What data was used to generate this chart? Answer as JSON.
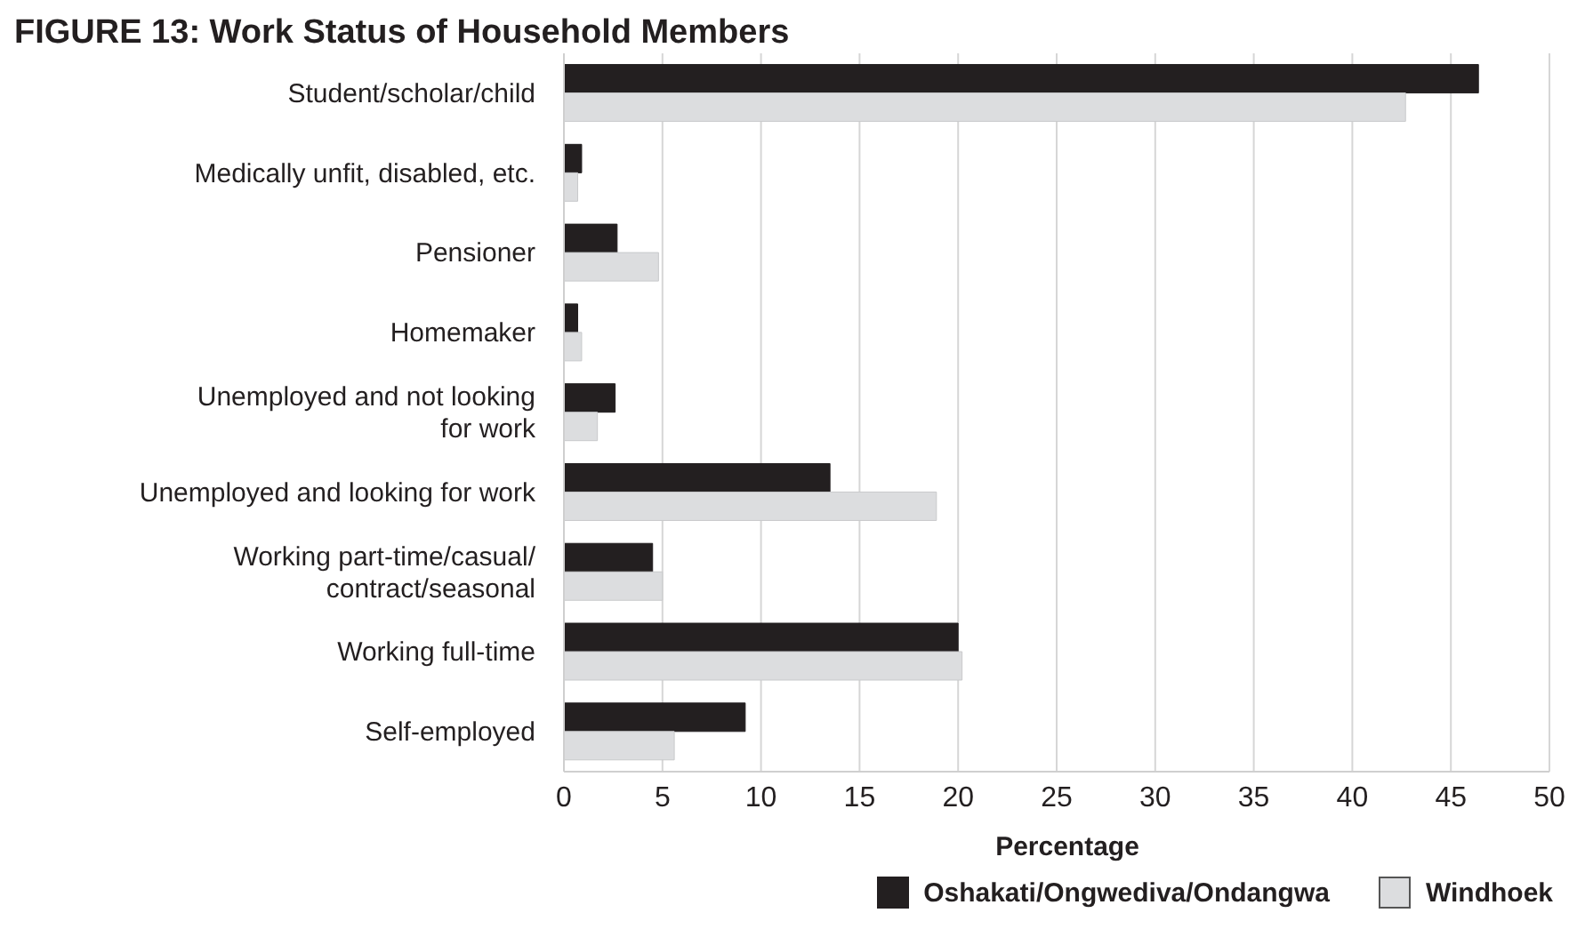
{
  "chart_data": {
    "type": "bar",
    "orientation": "horizontal",
    "title": "FIGURE 13: Work Status of Household Members",
    "xlabel": "Percentage",
    "categories": [
      "Student/scholar/child",
      "Medically unfit, disabled, etc.",
      "Pensioner",
      "Homemaker",
      "Unemployed and not looking for work",
      "Unemployed and looking for work",
      "Working part-time/casual/contract/seasonal",
      "Working full-time",
      "Self-employed"
    ],
    "series": [
      {
        "name": "Oshakati/Ongwediva/Ondangwa",
        "color": "#231f20",
        "values": [
          46.4,
          0.9,
          2.7,
          0.7,
          2.6,
          13.5,
          4.5,
          20.0,
          9.2
        ]
      },
      {
        "name": "Windhoek",
        "color": "#dcdddf",
        "values": [
          42.7,
          0.7,
          4.8,
          0.9,
          1.7,
          18.9,
          5.0,
          20.2,
          5.6
        ]
      }
    ],
    "xlim": [
      0,
      50
    ],
    "xticks": [
      0,
      5,
      10,
      15,
      20,
      25,
      30,
      35,
      40,
      45,
      50
    ],
    "grid": "x",
    "legend": "bottom right"
  }
}
